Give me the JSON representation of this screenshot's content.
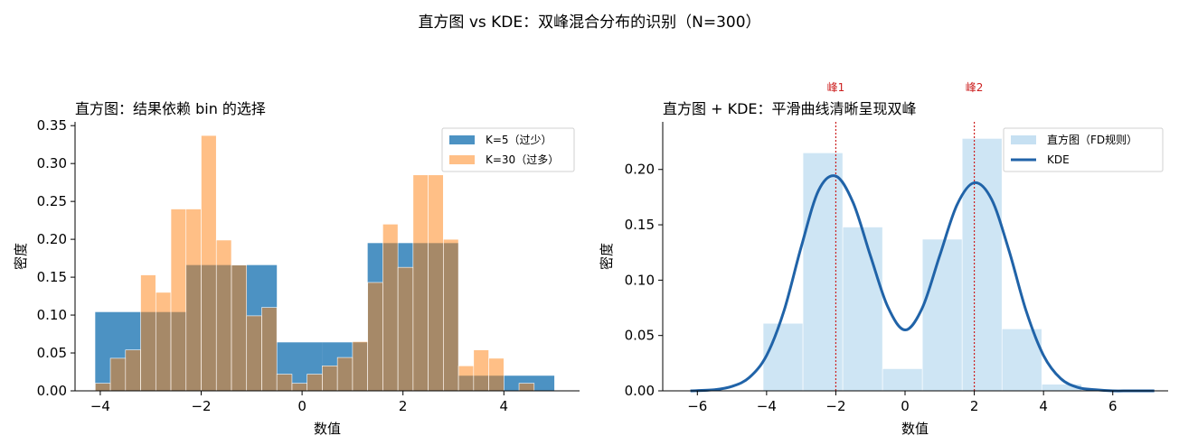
{
  "figure": {
    "suptitle": "直方图 vs KDE：双峰混合分布的识别（N=300）"
  },
  "colors": {
    "blue": "#1f77b4",
    "orange": "#ff7f0e",
    "kde": "#2063a8",
    "hist_light": "#c6e0f2",
    "peak": "#cc1f1f"
  },
  "chart_data": [
    {
      "type": "bar",
      "title": "直方图：结果依赖 bin 的选择",
      "xlabel": "数值",
      "ylabel": "密度",
      "xlim": [
        -4.5,
        5.5
      ],
      "ylim": [
        0,
        0.355
      ],
      "xticks": [
        -4,
        -2,
        0,
        2,
        4
      ],
      "xtick_labels": [
        "−4",
        "−2",
        "0",
        "2",
        "4"
      ],
      "yticks": [
        0.0,
        0.05,
        0.1,
        0.15,
        0.2,
        0.25,
        0.3,
        0.35
      ],
      "ytick_labels": [
        "0.00",
        "0.05",
        "0.10",
        "0.15",
        "0.20",
        "0.25",
        "0.30",
        "0.35"
      ],
      "legend_position": "top-right",
      "series": [
        {
          "name": "K=5（过少）",
          "color": "#1f77b4",
          "opacity": 0.8,
          "bin_edges": [
            -4.1,
            -3.2,
            -2.3,
            -1.4,
            -0.5,
            0.4,
            1.3,
            2.2,
            3.1,
            4.0,
            5.0
          ],
          "values": [
            0.104,
            0.104,
            0.166,
            0.166,
            0.064,
            0.064,
            0.195,
            0.195,
            0.02,
            0.02
          ]
        },
        {
          "name": "K=30（过多）",
          "color": "#ff7f0e",
          "opacity": 0.5,
          "bin_edges": [
            -4.1,
            -3.8,
            -3.5,
            -3.2,
            -2.9,
            -2.6,
            -2.3,
            -2.0,
            -1.7,
            -1.4,
            -1.1,
            -0.8,
            -0.5,
            -0.2,
            0.1,
            0.4,
            0.7,
            1.0,
            1.3,
            1.6,
            1.9,
            2.2,
            2.5,
            2.8,
            3.1,
            3.4,
            3.7,
            4.0,
            4.3,
            4.6,
            5.0
          ],
          "values": [
            0.01,
            0.043,
            0.054,
            0.153,
            0.13,
            0.24,
            0.24,
            0.337,
            0.199,
            0.166,
            0.099,
            0.11,
            0.022,
            0.01,
            0.022,
            0.033,
            0.044,
            0.065,
            0.143,
            0.22,
            0.163,
            0.285,
            0.285,
            0.2,
            0.033,
            0.054,
            0.043,
            0.0,
            0.01,
            0.0
          ]
        }
      ]
    },
    {
      "type": "bar",
      "title": "直方图 + KDE：平滑曲线清晰呈现双峰",
      "xlabel": "数值",
      "ylabel": "密度",
      "xlim": [
        -7.0,
        7.6
      ],
      "ylim": [
        0,
        0.243
      ],
      "xticks": [
        -6,
        -4,
        -2,
        0,
        2,
        4,
        6
      ],
      "xtick_labels": [
        "−6",
        "−4",
        "−2",
        "0",
        "2",
        "4",
        "6"
      ],
      "yticks": [
        0.0,
        0.05,
        0.1,
        0.15,
        0.2
      ],
      "ytick_labels": [
        "0.00",
        "0.05",
        "0.10",
        "0.15",
        "0.20"
      ],
      "legend_position": "top-right",
      "histogram": {
        "name": "直方图（FD规则）",
        "color": "#c6e0f2",
        "bin_edges": [
          -4.1,
          -2.95,
          -1.8,
          -0.65,
          0.5,
          1.65,
          2.8,
          3.95,
          5.1
        ],
        "values": [
          0.061,
          0.215,
          0.148,
          0.02,
          0.137,
          0.228,
          0.056,
          0.006
        ]
      },
      "kde": {
        "name": "KDE",
        "color": "#2063a8",
        "x": [
          -6.2,
          -5.5,
          -5.0,
          -4.5,
          -4.0,
          -3.5,
          -3.0,
          -2.5,
          -2.0,
          -1.5,
          -1.0,
          -0.5,
          0.0,
          0.5,
          1.0,
          1.5,
          2.0,
          2.5,
          3.0,
          3.5,
          4.0,
          4.5,
          5.0,
          5.5,
          6.0,
          6.5,
          7.2
        ],
        "y": [
          0.0,
          0.001,
          0.004,
          0.012,
          0.032,
          0.072,
          0.13,
          0.181,
          0.194,
          0.17,
          0.122,
          0.076,
          0.055,
          0.075,
          0.122,
          0.168,
          0.188,
          0.173,
          0.127,
          0.072,
          0.032,
          0.011,
          0.003,
          0.001,
          0.0,
          0.0,
          0.0
        ]
      },
      "peaks": [
        {
          "label": "峰1",
          "x": -2.0
        },
        {
          "label": "峰2",
          "x": 2.0
        }
      ]
    }
  ]
}
